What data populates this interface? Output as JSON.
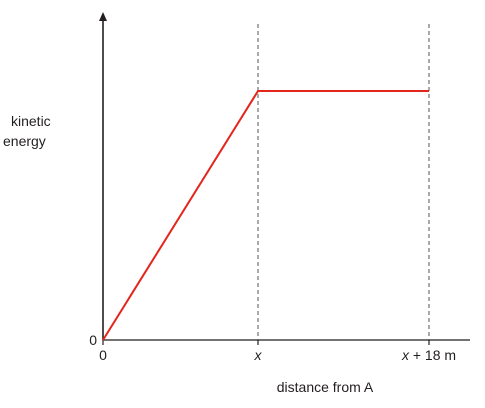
{
  "chart_data": {
    "type": "line",
    "title": "",
    "xlabel": "distance from A",
    "ylabel_lines": [
      "kinetic",
      "energy"
    ],
    "x_ticks": [
      {
        "position": "origin",
        "label": "0",
        "italic": false
      },
      {
        "position": "x",
        "label": "x",
        "italic": true
      },
      {
        "position": "x_plus_18m",
        "label_var": "x",
        "label_rest": " + 18 m",
        "italic_part": "x"
      }
    ],
    "y_ticks": [
      {
        "position": "origin",
        "label": "0"
      }
    ],
    "series": [
      {
        "color": "#e3261c",
        "points": [
          {
            "x": "0",
            "y": 0
          },
          {
            "x": "x",
            "y": "max"
          },
          {
            "x": "x + 18 m",
            "y": "max"
          }
        ]
      }
    ],
    "reference_lines": [
      {
        "at": "x",
        "style": "dashed"
      },
      {
        "at": "x + 18 m",
        "style": "dashed"
      }
    ],
    "grid": false,
    "colors": {
      "axis": "#231f20",
      "series": "#e3261c",
      "dashed": "#555555"
    }
  }
}
